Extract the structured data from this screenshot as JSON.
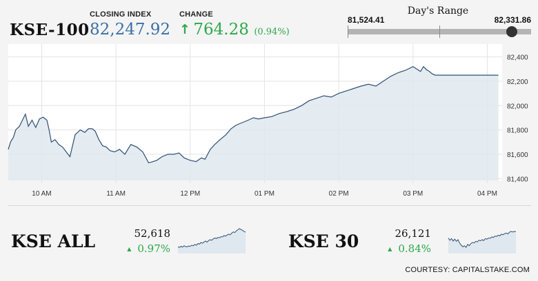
{
  "header": {
    "ticker": "KSE-100",
    "closing_label": "CLOSING INDEX",
    "closing_value": "82,247.92",
    "change_label": "CHANGE",
    "change_arrow": "↑",
    "change_value": "764.28",
    "change_pct": "(0.94%)"
  },
  "range": {
    "title": "Day's Range",
    "low": "81,524.41",
    "high": "82,331.86",
    "low_value": 81524.41,
    "high_value": 82331.86,
    "current_value": 82247.92
  },
  "chart_data": {
    "type": "area",
    "x_tick_labels": [
      "10 AM",
      "11 AM",
      "12 PM",
      "01 PM",
      "02 PM",
      "03 PM",
      "04 PM"
    ],
    "y_tick_labels": [
      "82,400",
      "82,200",
      "82,000",
      "81,800",
      "81,600",
      "81,400"
    ],
    "y_ticks": [
      82400,
      82200,
      82000,
      81800,
      81600,
      81400
    ],
    "ylim": [
      81385,
      82505
    ],
    "xlim": [
      9.55,
      16.2
    ],
    "grid": true,
    "series": [
      {
        "x": [
          9.55,
          9.58,
          9.62,
          9.65,
          9.7,
          9.74,
          9.78,
          9.82,
          9.87,
          9.92,
          9.97,
          10.02,
          10.07,
          10.1,
          10.13,
          10.18,
          10.23,
          10.28,
          10.33,
          10.38,
          10.45,
          10.52,
          10.58,
          10.63,
          10.68,
          10.72,
          10.77,
          10.82,
          10.87,
          10.92,
          10.98,
          11.05,
          11.12,
          11.2,
          11.28,
          11.36,
          11.44,
          11.5,
          11.55,
          11.62,
          11.7,
          11.78,
          11.85,
          11.92,
          12,
          12.08,
          12.15,
          12.2,
          12.27,
          12.33,
          12.4,
          12.48,
          12.55,
          12.62,
          12.7,
          12.78,
          12.85,
          12.92,
          13,
          13.1,
          13.2,
          13.3,
          13.4,
          13.5,
          13.6,
          13.7,
          13.8,
          13.9,
          14,
          14.1,
          14.2,
          14.3,
          14.4,
          14.5,
          14.6,
          14.7,
          14.8,
          14.9,
          15.0,
          15.05,
          15.1,
          15.14,
          15.18,
          15.22,
          15.26,
          15.3,
          15.35,
          15.4,
          15.45,
          15.5,
          15.6,
          15.8,
          16.0,
          16.15
        ],
        "y": [
          81640,
          81700,
          81740,
          81800,
          81830,
          81880,
          81930,
          81830,
          81880,
          81820,
          81890,
          81905,
          81880,
          81800,
          81700,
          81720,
          81680,
          81660,
          81620,
          81580,
          81760,
          81800,
          81780,
          81810,
          81810,
          81790,
          81720,
          81670,
          81660,
          81630,
          81620,
          81640,
          81600,
          81680,
          81660,
          81620,
          81530,
          81540,
          81550,
          81580,
          81600,
          81600,
          81610,
          81570,
          81550,
          81540,
          81570,
          81560,
          81640,
          81680,
          81720,
          81760,
          81810,
          81840,
          81860,
          81880,
          81900,
          81890,
          81900,
          81910,
          81935,
          81950,
          81970,
          82000,
          82040,
          82060,
          82080,
          82070,
          82100,
          82120,
          82140,
          82160,
          82175,
          82160,
          82200,
          82240,
          82270,
          82290,
          82320,
          82300,
          82280,
          82320,
          82295,
          82280,
          82260,
          82250,
          82250,
          82250,
          82250,
          82250,
          82250,
          82250,
          82250,
          82250
        ]
      }
    ]
  },
  "mini_charts": [
    {
      "name": "KSE ALL",
      "value": "52,618",
      "change": "0.97%",
      "arrow": "▲",
      "ylim": [
        0,
        100
      ],
      "points": [
        24,
        22,
        26,
        23,
        28,
        25,
        24,
        27,
        26,
        30,
        28,
        33,
        30,
        36,
        34,
        40,
        37,
        42,
        45,
        41,
        47,
        50,
        48,
        53,
        56,
        54,
        58,
        57,
        61,
        60,
        65,
        63,
        67,
        70,
        68,
        74,
        78,
        76,
        82,
        86,
        90,
        87,
        84,
        80,
        77
      ]
    },
    {
      "name": "KSE 30",
      "value": "26,121",
      "change": "0.84%",
      "arrow": "▲",
      "ylim": [
        0,
        100
      ],
      "points": [
        56,
        48,
        54,
        45,
        52,
        44,
        50,
        38,
        30,
        24,
        28,
        22,
        33,
        28,
        36,
        40,
        38,
        44,
        42,
        48,
        46,
        50,
        47,
        54,
        52,
        56,
        55,
        60,
        58,
        63,
        62,
        66,
        64,
        70,
        68,
        72,
        74,
        71,
        77,
        80,
        78,
        80,
        79
      ]
    }
  ],
  "credit": "COURTESY: CAPITALSTAKE.COM",
  "colors": {
    "up": "#2ba84a",
    "line": "#2f4f73",
    "fill": "#dfe7ef",
    "closing": "#3a6fa5"
  }
}
